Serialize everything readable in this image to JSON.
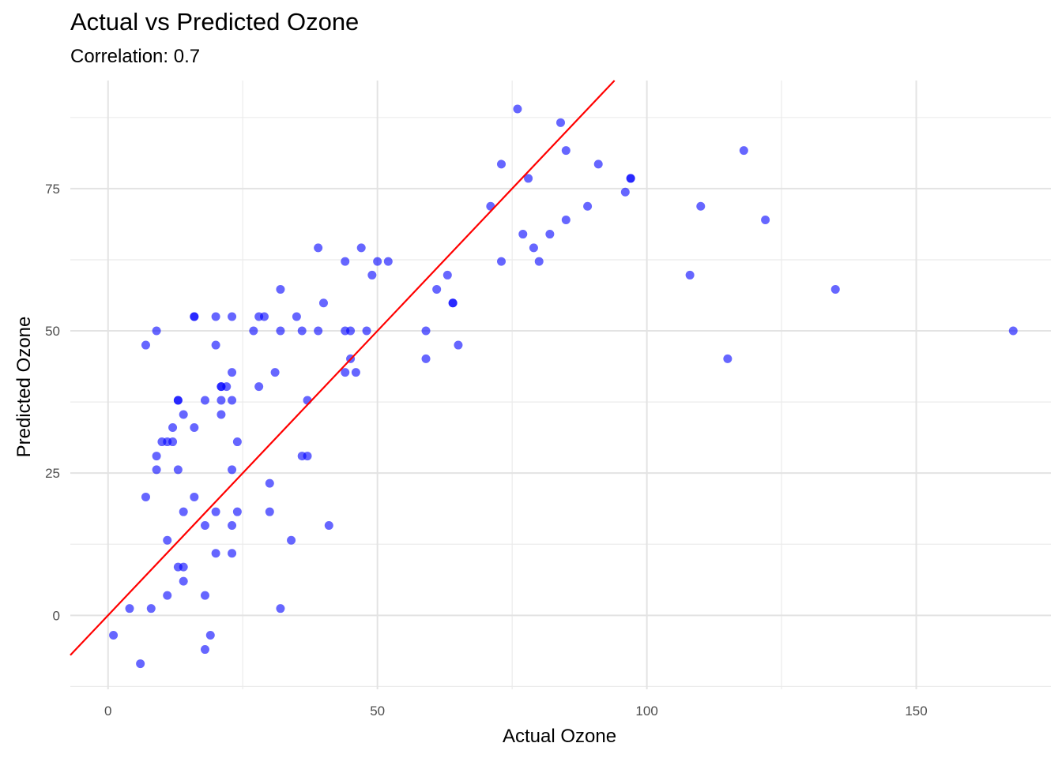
{
  "chart_data": {
    "type": "scatter",
    "title": "Actual vs Predicted Ozone",
    "subtitle": "Correlation: 0.7",
    "xlabel": "Actual Ozone",
    "ylabel": "Predicted Ozone",
    "xlim": [
      -7,
      175
    ],
    "ylim": [
      -13,
      94
    ],
    "x_ticks": [
      0,
      50,
      100,
      150
    ],
    "y_ticks": [
      0,
      25,
      50,
      75
    ],
    "x_tick_labels": [
      "0",
      "50",
      "100",
      "150"
    ],
    "y_tick_labels": [
      "0",
      "25",
      "50",
      "75"
    ],
    "grid": true,
    "point_color": "#0000ff",
    "point_opacity": 0.6,
    "reference_line": {
      "slope": 1,
      "intercept": 0,
      "color": "#ff0000"
    },
    "points": [
      [
        1,
        -3.5
      ],
      [
        4,
        1.2
      ],
      [
        6,
        -8.5
      ],
      [
        7,
        47.5
      ],
      [
        7,
        20.8
      ],
      [
        8,
        1.2
      ],
      [
        9,
        50
      ],
      [
        9,
        28
      ],
      [
        9,
        25.6
      ],
      [
        10,
        30.5
      ],
      [
        11,
        30.5
      ],
      [
        11,
        13.2
      ],
      [
        11,
        3.5
      ],
      [
        12,
        30.5
      ],
      [
        12,
        33
      ],
      [
        13,
        37.8
      ],
      [
        13,
        37.8
      ],
      [
        13,
        25.6
      ],
      [
        13,
        8.5
      ],
      [
        14,
        35.3
      ],
      [
        14,
        18.2
      ],
      [
        14,
        8.5
      ],
      [
        14,
        6
      ],
      [
        16,
        52.5
      ],
      [
        16,
        52.5
      ],
      [
        16,
        33
      ],
      [
        16,
        20.8
      ],
      [
        18,
        37.8
      ],
      [
        18,
        15.8
      ],
      [
        18,
        3.5
      ],
      [
        18,
        -6
      ],
      [
        19,
        -3.5
      ],
      [
        20,
        52.5
      ],
      [
        20,
        47.5
      ],
      [
        20,
        18.2
      ],
      [
        20,
        10.9
      ],
      [
        21,
        40.2
      ],
      [
        21,
        40.2
      ],
      [
        21,
        37.8
      ],
      [
        21,
        35.3
      ],
      [
        22,
        40.2
      ],
      [
        23,
        52.5
      ],
      [
        23,
        42.7
      ],
      [
        23,
        37.8
      ],
      [
        23,
        25.6
      ],
      [
        23,
        15.8
      ],
      [
        23,
        10.9
      ],
      [
        24,
        30.5
      ],
      [
        24,
        18.2
      ],
      [
        27,
        50
      ],
      [
        28,
        52.5
      ],
      [
        28,
        40.2
      ],
      [
        29,
        52.5
      ],
      [
        30,
        23.2
      ],
      [
        30,
        18.2
      ],
      [
        31,
        42.7
      ],
      [
        32,
        57.3
      ],
      [
        32,
        50
      ],
      [
        32,
        1.2
      ],
      [
        34,
        13.2
      ],
      [
        35,
        52.5
      ],
      [
        36,
        50
      ],
      [
        36,
        28
      ],
      [
        37,
        37.8
      ],
      [
        37,
        28
      ],
      [
        39,
        64.6
      ],
      [
        39,
        50
      ],
      [
        40,
        54.9
      ],
      [
        41,
        15.8
      ],
      [
        44,
        62.2
      ],
      [
        44,
        50
      ],
      [
        44,
        42.7
      ],
      [
        45,
        50
      ],
      [
        45,
        45.1
      ],
      [
        46,
        42.7
      ],
      [
        47,
        64.6
      ],
      [
        48,
        50
      ],
      [
        49,
        59.8
      ],
      [
        50,
        62.2
      ],
      [
        52,
        62.2
      ],
      [
        59,
        50
      ],
      [
        59,
        45.1
      ],
      [
        61,
        57.3
      ],
      [
        63,
        59.8
      ],
      [
        64,
        54.9
      ],
      [
        64,
        54.9
      ],
      [
        65,
        47.5
      ],
      [
        71,
        71.9
      ],
      [
        73,
        79.3
      ],
      [
        73,
        62.2
      ],
      [
        76,
        89
      ],
      [
        77,
        67
      ],
      [
        78,
        76.8
      ],
      [
        79,
        64.6
      ],
      [
        80,
        62.2
      ],
      [
        82,
        67
      ],
      [
        84,
        86.6
      ],
      [
        85,
        81.7
      ],
      [
        85,
        69.5
      ],
      [
        89,
        71.9
      ],
      [
        91,
        79.3
      ],
      [
        96,
        74.4
      ],
      [
        97,
        76.8
      ],
      [
        97,
        76.8
      ],
      [
        108,
        59.8
      ],
      [
        110,
        71.9
      ],
      [
        115,
        45.1
      ],
      [
        118,
        81.7
      ],
      [
        122,
        69.5
      ],
      [
        135,
        57.3
      ],
      [
        168,
        50
      ]
    ]
  }
}
